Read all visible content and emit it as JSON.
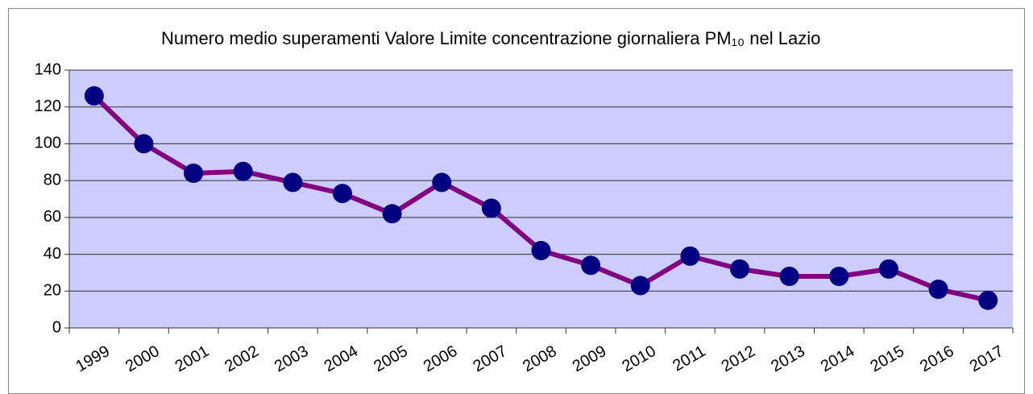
{
  "chart_data": {
    "type": "line",
    "title": "Numero medio superamenti Valore Limite concentrazione giornaliera PM₁₀ nel Lazio",
    "categories": [
      "1999",
      "2000",
      "2001",
      "2002",
      "2003",
      "2004",
      "2005",
      "2006",
      "2007",
      "2008",
      "2009",
      "2010",
      "2011",
      "2012",
      "2013",
      "2014",
      "2015",
      "2016",
      "2017"
    ],
    "series": [
      {
        "name": "Numero medio superamenti",
        "color": "#800080",
        "marker_color": "#000080",
        "values": [
          126,
          100,
          84,
          85,
          79,
          73,
          62,
          79,
          65,
          42,
          34,
          23,
          39,
          32,
          28,
          28,
          32,
          21,
          15
        ]
      }
    ],
    "ylim": [
      0,
      140
    ],
    "yticks": [
      0,
      20,
      40,
      60,
      80,
      100,
      120,
      140
    ],
    "grid": true,
    "plot_color": "#ccccff"
  }
}
